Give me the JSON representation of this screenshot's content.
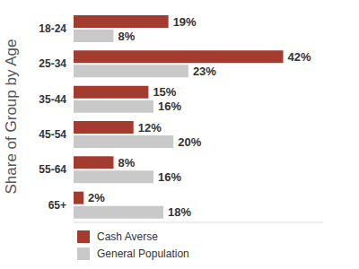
{
  "chart_data": {
    "type": "bar",
    "orientation": "horizontal",
    "y_label": "Share of Group by Age",
    "categories": [
      "18-24",
      "25-34",
      "35-44",
      "45-54",
      "55-64",
      "65+"
    ],
    "series": [
      {
        "name": "Cash Averse",
        "color": "#a33b2e",
        "values": [
          19,
          42,
          15,
          12,
          8,
          2
        ],
        "value_labels": [
          "19%",
          "42%",
          "15%",
          "12%",
          "8%",
          "2%"
        ]
      },
      {
        "name": "General Population",
        "color": "#c9c9c9",
        "values": [
          8,
          23,
          16,
          20,
          16,
          18
        ],
        "value_labels": [
          "8%",
          "23%",
          "16%",
          "20%",
          "16%",
          "18%"
        ]
      }
    ],
    "xlim": [
      0,
      50
    ],
    "data_labels": true,
    "tick_labels": "y",
    "legend": "bottom-left",
    "grid": false
  }
}
